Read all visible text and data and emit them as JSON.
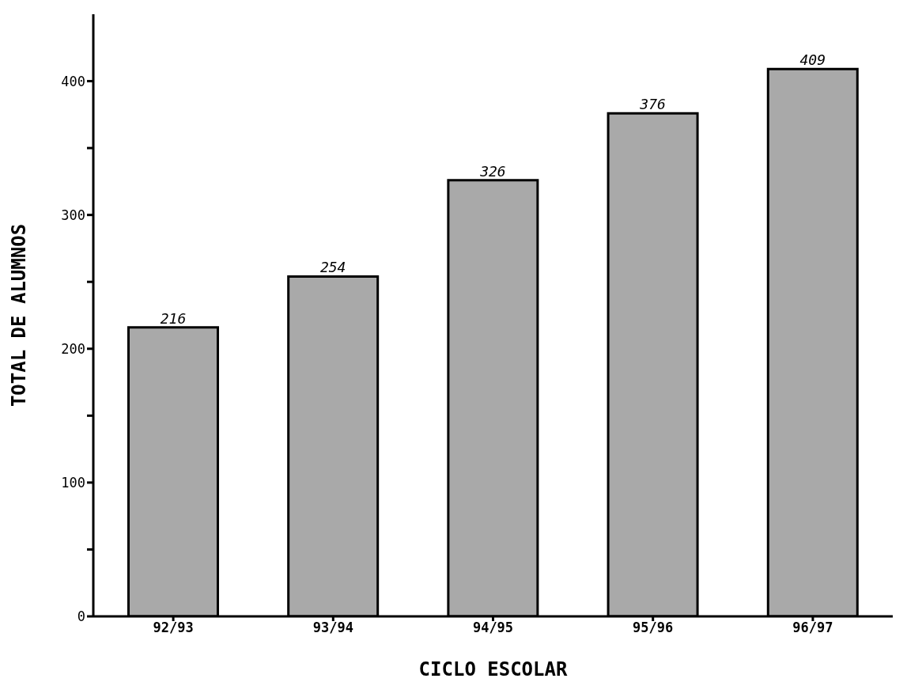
{
  "chart_data": {
    "type": "bar",
    "xlabel": "CICLO ESCOLAR",
    "ylabel": "TOTAL DE ALUMNOS",
    "categories": [
      "92/93",
      "93/94",
      "94/95",
      "95/96",
      "96/97"
    ],
    "values": [
      216,
      254,
      326,
      376,
      409
    ],
    "color": "#a9a9a9",
    "ylim": [
      0,
      450
    ],
    "yticks": [
      0,
      {
        "value": 50,
        "label": null
      },
      100,
      {
        "value": 150,
        "label": null
      },
      200,
      {
        "value": 250,
        "label": null
      },
      300,
      {
        "value": 350,
        "label": null
      },
      400
    ],
    "grid": false,
    "data_labels": true,
    "legend": false
  }
}
